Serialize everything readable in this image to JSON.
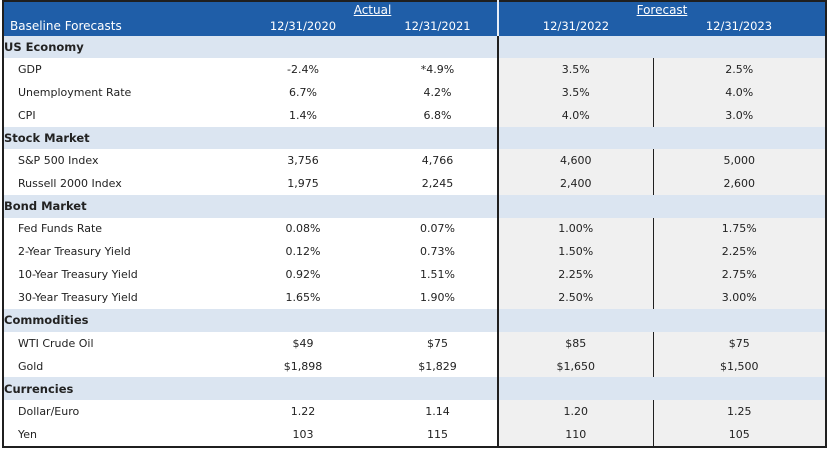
{
  "header": {
    "title": "Baseline Forecasts",
    "group_actual": "Actual",
    "group_forecast": "Forecast",
    "dates": [
      "12/31/2020",
      "12/31/2021",
      "12/31/2022",
      "12/31/2023"
    ]
  },
  "sections": [
    {
      "title": "US Economy",
      "rows": [
        {
          "label": "GDP",
          "values": [
            "-2.4%",
            "*4.9%",
            "3.5%",
            "2.5%"
          ]
        },
        {
          "label": "Unemployment Rate",
          "values": [
            "6.7%",
            "4.2%",
            "3.5%",
            "4.0%"
          ]
        },
        {
          "label": "CPI",
          "values": [
            "1.4%",
            "6.8%",
            "4.0%",
            "3.0%"
          ]
        }
      ]
    },
    {
      "title": "Stock Market",
      "rows": [
        {
          "label": "S&P 500 Index",
          "values": [
            "3,756",
            "4,766",
            "4,600",
            "5,000"
          ]
        },
        {
          "label": "Russell 2000 Index",
          "values": [
            "1,975",
            "2,245",
            "2,400",
            "2,600"
          ]
        }
      ]
    },
    {
      "title": "Bond Market",
      "rows": [
        {
          "label": "Fed Funds Rate",
          "values": [
            "0.08%",
            "0.07%",
            "1.00%",
            "1.75%"
          ]
        },
        {
          "label": "2-Year Treasury Yield",
          "values": [
            "0.12%",
            "0.73%",
            "1.50%",
            "2.25%"
          ]
        },
        {
          "label": "10-Year Treasury Yield",
          "values": [
            "0.92%",
            "1.51%",
            "2.25%",
            "2.75%"
          ]
        },
        {
          "label": "30-Year Treasury Yield",
          "values": [
            "1.65%",
            "1.90%",
            "2.50%",
            "3.00%"
          ]
        }
      ]
    },
    {
      "title": "Commodities",
      "rows": [
        {
          "label": "WTI Crude Oil",
          "values": [
            "$49",
            "$75",
            "$85",
            "$75"
          ]
        },
        {
          "label": "Gold",
          "values": [
            "$1,898",
            "$1,829",
            "$1,650",
            "$1,500"
          ]
        }
      ]
    },
    {
      "title": "Currencies",
      "rows": [
        {
          "label": "Dollar/Euro",
          "values": [
            "1.22",
            "1.14",
            "1.20",
            "1.25"
          ]
        },
        {
          "label": "Yen",
          "values": [
            "103",
            "115",
            "110",
            "105"
          ]
        }
      ]
    }
  ]
}
